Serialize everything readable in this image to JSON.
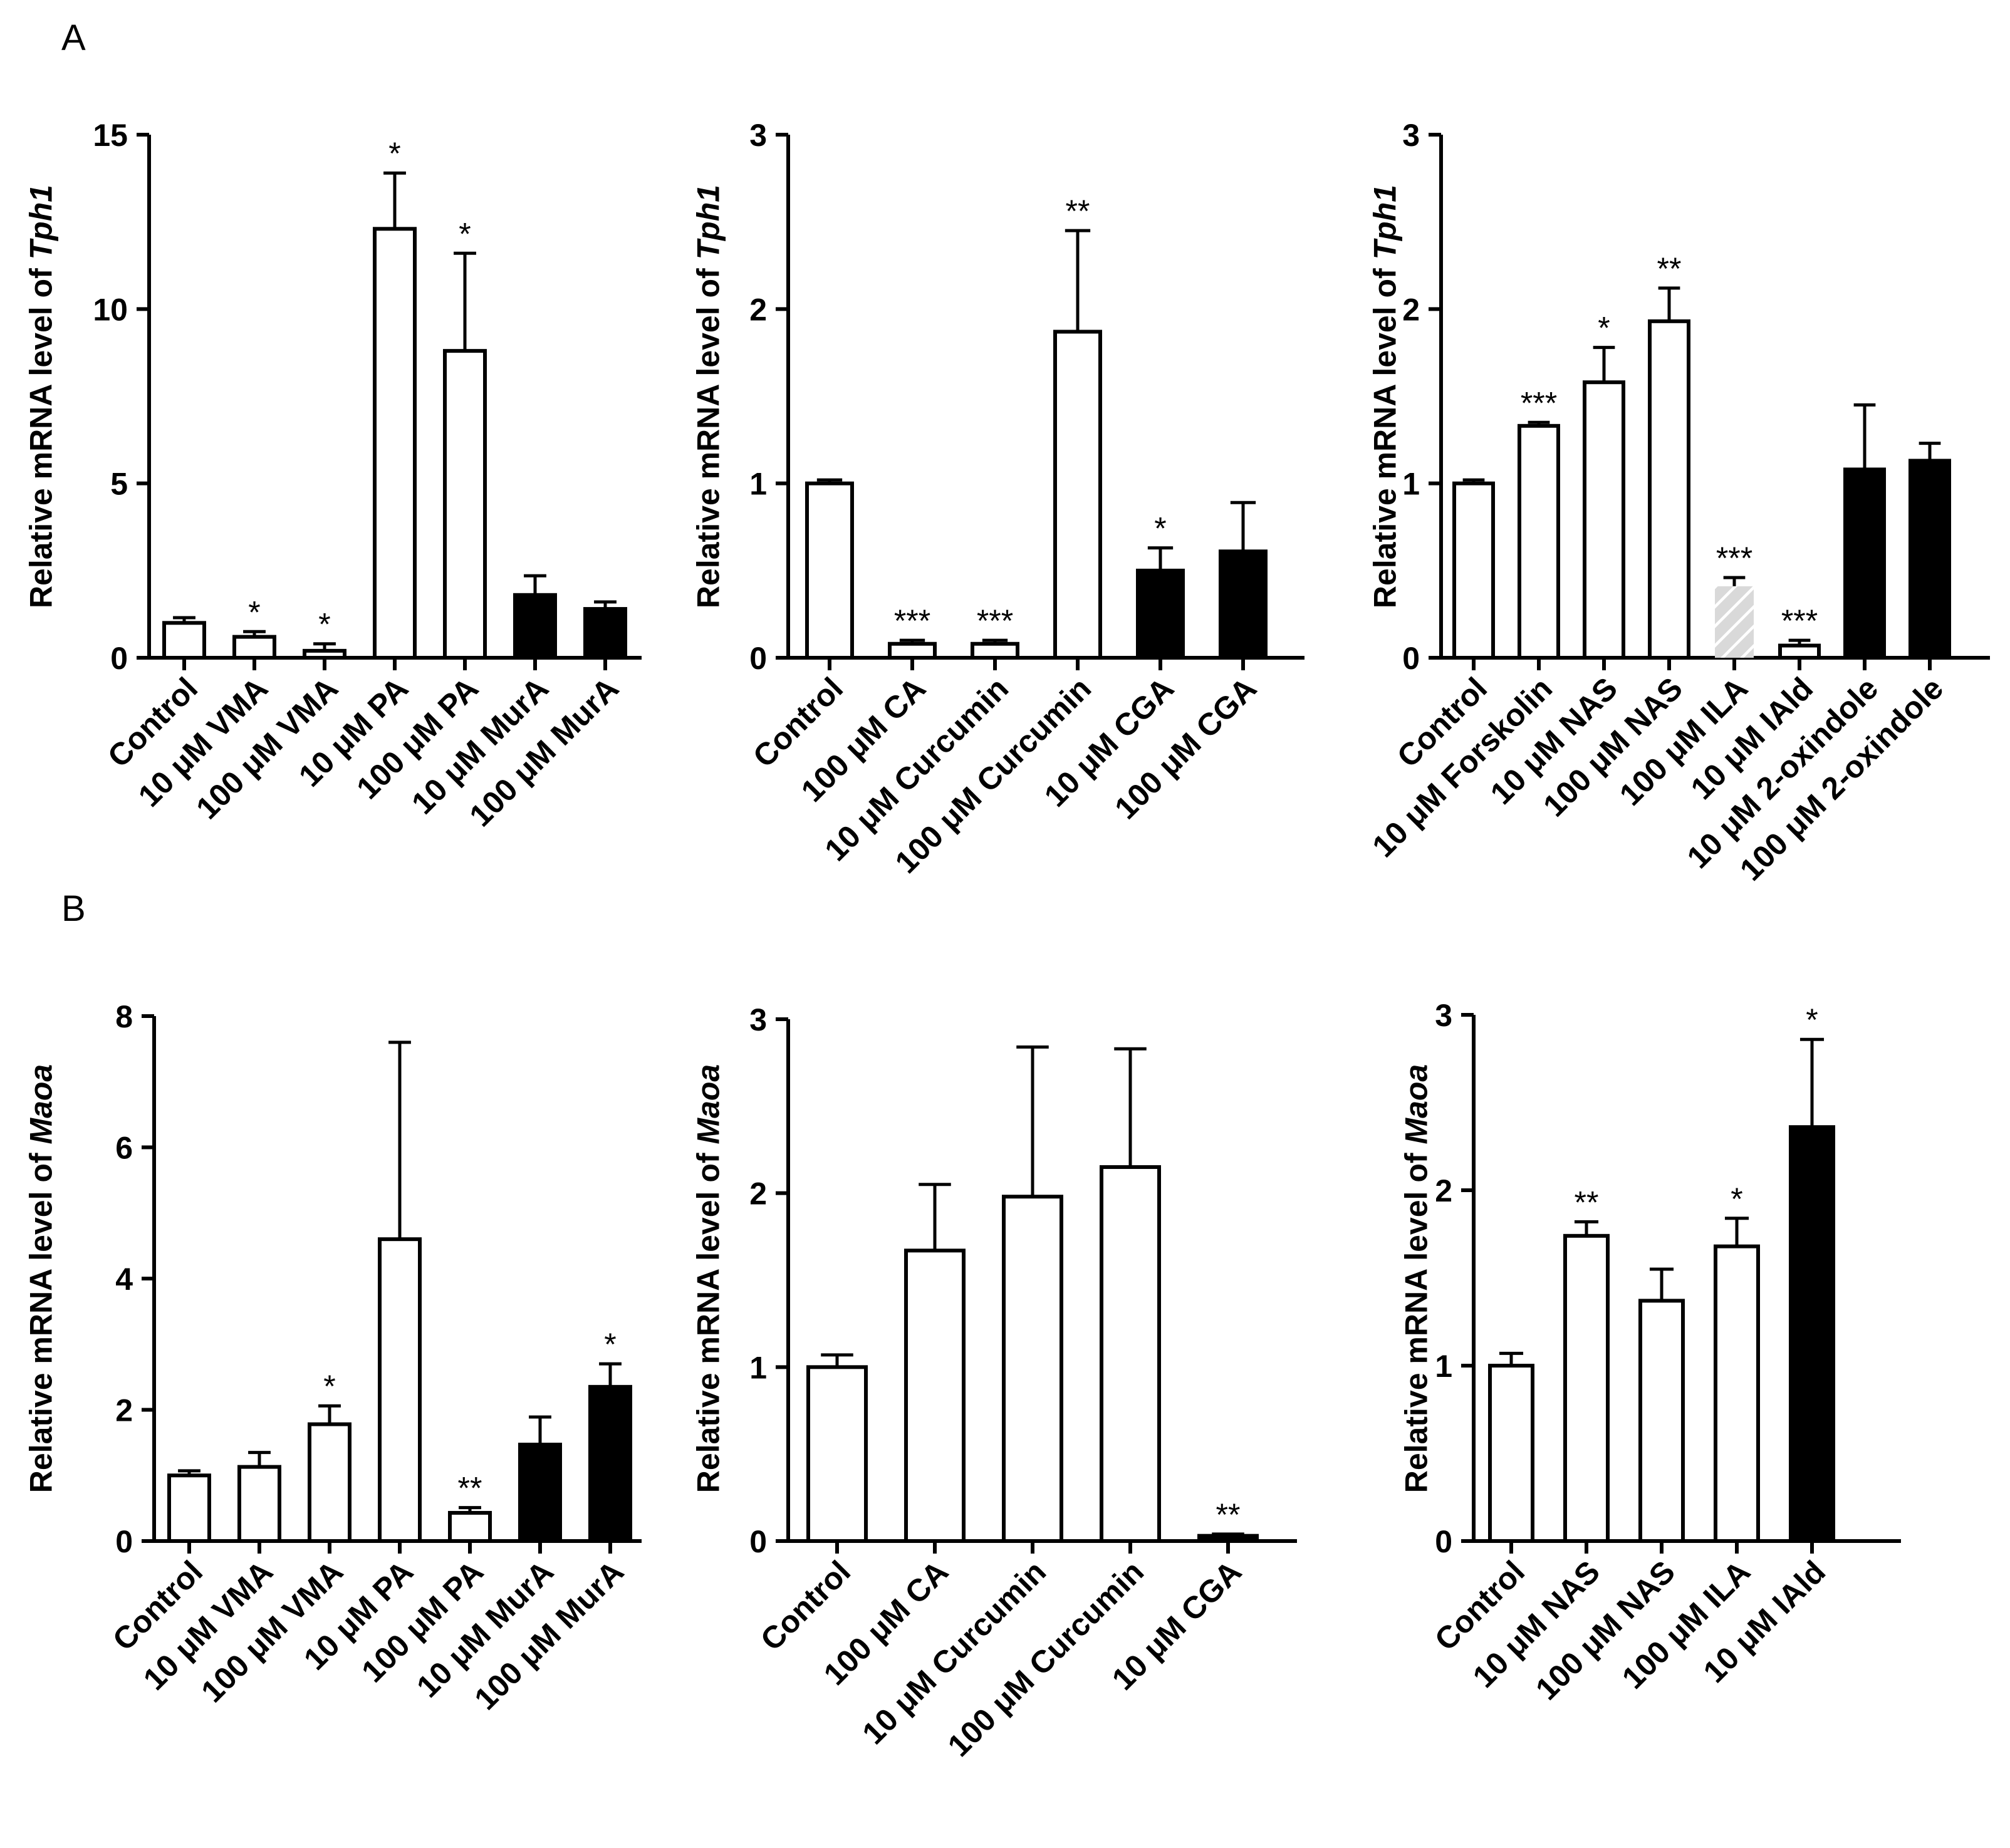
{
  "panel_labels": [
    "A",
    "B"
  ],
  "colors": {
    "open": "#ffffff",
    "filled": "#000000",
    "hatched_bg": "#d9d9d9",
    "hatched_line": "#ffffff",
    "stroke": "#000000"
  },
  "chart_data": [
    {
      "type": "bar",
      "panel": "A",
      "ylabel_prefix": "Relative mRNA level of ",
      "ylabel_gene": "Tph1",
      "ylim": [
        0,
        15
      ],
      "yticks": [
        "0",
        "5",
        "10",
        "15"
      ],
      "ytick_values": [
        0,
        5,
        10,
        15
      ],
      "categories": [
        "Control",
        "10 μM VMA",
        "100 μM VMA",
        "10 μM PA",
        "100 μM PA",
        "10 μM MurA",
        "100 μM MurA"
      ],
      "values": [
        1.0,
        0.6,
        0.2,
        12.3,
        8.8,
        1.8,
        1.4
      ],
      "errors": [
        0.15,
        0.15,
        0.2,
        1.6,
        2.8,
        0.55,
        0.2
      ],
      "significance": [
        "",
        "*",
        "*",
        "*",
        "*",
        "",
        ""
      ],
      "fills": [
        "open",
        "open",
        "open",
        "open",
        "open",
        "filled",
        "filled"
      ]
    },
    {
      "type": "bar",
      "panel": "A",
      "ylabel_prefix": "Relative mRNA level of ",
      "ylabel_gene": "Tph1",
      "ylim": [
        0,
        3
      ],
      "yticks": [
        "0",
        "1",
        "2",
        "3"
      ],
      "ytick_values": [
        0,
        1,
        2,
        3
      ],
      "categories": [
        "Control",
        "100 μM CA",
        "10 μM Curcumin",
        "100 μM Curcumin",
        "10 μM CGA",
        "100 μM CGA"
      ],
      "values": [
        1.0,
        0.08,
        0.08,
        1.87,
        0.5,
        0.61
      ],
      "errors": [
        0.02,
        0.02,
        0.02,
        0.58,
        0.13,
        0.28
      ],
      "significance": [
        "",
        "***",
        "***",
        "**",
        "*",
        ""
      ],
      "fills": [
        "open",
        "open",
        "open",
        "open",
        "filled",
        "filled"
      ]
    },
    {
      "type": "bar",
      "panel": "A",
      "ylabel_prefix": "Relative mRNA level of ",
      "ylabel_gene": "Tph1",
      "ylim": [
        0,
        3
      ],
      "yticks": [
        "0",
        "1",
        "2",
        "3"
      ],
      "ytick_values": [
        0,
        1,
        2,
        3
      ],
      "categories": [
        "Control",
        "10 μM Forskolin",
        "10 μM NAS",
        "100 μM NAS",
        "100 μM ILA",
        "10 μM IAld",
        "10 μM 2-oxindole",
        "100 μM 2-oxindole"
      ],
      "values": [
        1.0,
        1.33,
        1.58,
        1.93,
        0.41,
        0.07,
        1.08,
        1.13
      ],
      "errors": [
        0.02,
        0.02,
        0.2,
        0.19,
        0.05,
        0.03,
        0.37,
        0.1
      ],
      "significance": [
        "",
        "***",
        "*",
        "**",
        "***",
        "***",
        "",
        ""
      ],
      "fills": [
        "open",
        "open",
        "open",
        "open",
        "hatched",
        "open",
        "filled",
        "filled"
      ]
    },
    {
      "type": "bar",
      "panel": "B",
      "ylabel_prefix": "Relative mRNA level of ",
      "ylabel_gene": "Maoa",
      "ylim": [
        0,
        8
      ],
      "yticks": [
        "0",
        "2",
        "4",
        "6",
        "8"
      ],
      "ytick_values": [
        0,
        2,
        4,
        6,
        8
      ],
      "categories": [
        "Control",
        "10 μM VMA",
        "100 μM VMA",
        "10 μM PA",
        "100 μM PA",
        "10 μM MurA",
        "100 μM MurA"
      ],
      "values": [
        1.0,
        1.13,
        1.78,
        4.6,
        0.43,
        1.47,
        2.35
      ],
      "errors": [
        0.07,
        0.22,
        0.28,
        3.0,
        0.08,
        0.42,
        0.35
      ],
      "significance": [
        "",
        "",
        "*",
        "",
        "**",
        "",
        "*"
      ],
      "fills": [
        "open",
        "open",
        "open",
        "open",
        "open",
        "filled",
        "filled"
      ]
    },
    {
      "type": "bar",
      "panel": "B",
      "ylabel_prefix": "Relative mRNA level of ",
      "ylabel_gene": "Maoa",
      "ylim": [
        0,
        3
      ],
      "yticks": [
        "0",
        "1",
        "2",
        "3"
      ],
      "ytick_values": [
        0,
        1,
        2,
        3
      ],
      "categories": [
        "Control",
        "100 μM CA",
        "10 μM Curcumin",
        "100 μM Curcumin",
        "10 μM CGA"
      ],
      "values": [
        1.0,
        1.67,
        1.98,
        2.15,
        0.03
      ],
      "errors": [
        0.07,
        0.38,
        0.86,
        0.68,
        0.01
      ],
      "significance": [
        "",
        "",
        "",
        "",
        "**"
      ],
      "fills": [
        "open",
        "open",
        "open",
        "open",
        "filled"
      ]
    },
    {
      "type": "bar",
      "panel": "B",
      "ylabel_prefix": "Relative mRNA level of ",
      "ylabel_gene": "Maoa",
      "ylim": [
        0,
        3
      ],
      "yticks": [
        "0",
        "1",
        "2",
        "3"
      ],
      "ytick_values": [
        0,
        1,
        2,
        3
      ],
      "categories": [
        "Control",
        "10 μM NAS",
        "100 μM NAS",
        "100 μM ILA",
        "10 μM IAld"
      ],
      "values": [
        1.0,
        1.74,
        1.37,
        1.68,
        2.36
      ],
      "errors": [
        0.07,
        0.08,
        0.18,
        0.16,
        0.5
      ],
      "significance": [
        "",
        "**",
        "",
        "*",
        "*"
      ],
      "fills": [
        "open",
        "open",
        "open",
        "open",
        "filled"
      ]
    }
  ]
}
